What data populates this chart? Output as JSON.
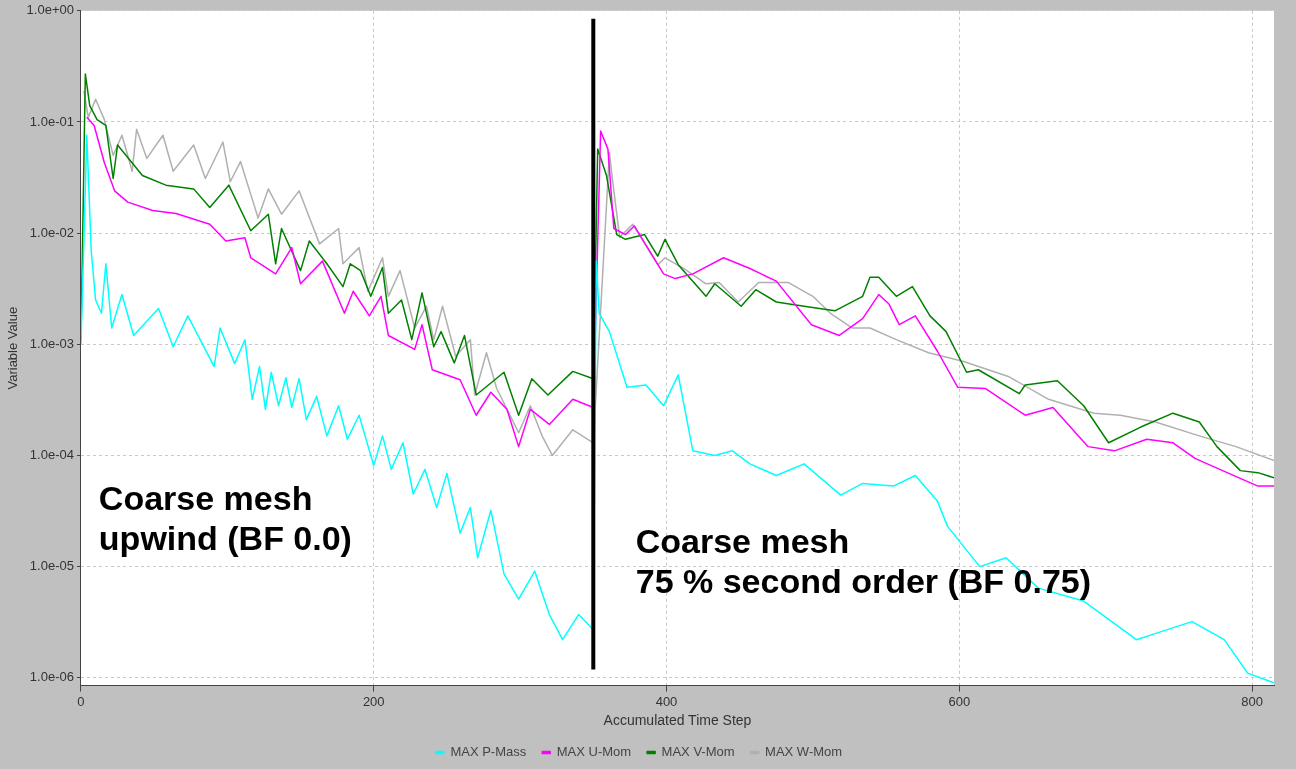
{
  "chart_data": {
    "type": "line",
    "xlabel": "Accumulated Time Step",
    "ylabel": "Variable Value",
    "log": "y",
    "grid": true,
    "legend": "bottom",
    "marker": "none",
    "line_style": "solid",
    "xlim": [
      0,
      815
    ],
    "xticks": [
      0,
      200,
      400,
      600,
      800
    ],
    "ylim": [
      8.5e-07,
      1
    ],
    "yticks": [
      {
        "value": 1e-06,
        "label": "1.0e-06"
      },
      {
        "value": 1e-05,
        "label": "1.0e-05"
      },
      {
        "value": 0.0001,
        "label": "1.0e-04"
      },
      {
        "value": 0.001,
        "label": "1.0e-03"
      },
      {
        "value": 0.01,
        "label": "1.0e-02"
      },
      {
        "value": 0.1,
        "label": "1.0e-01"
      },
      {
        "value": 1,
        "label": "1.0e+00"
      }
    ],
    "ref_lines": [
      {
        "axis": "x",
        "value": 350,
        "color": "#000000"
      }
    ],
    "annotations": [
      "Coarse mesh\nupwind (BF 0.0)",
      "Coarse mesh\n75 % second order (BF 0.75)"
    ],
    "series": [
      {
        "name": "MAX P-Mass",
        "color": "#00ffff",
        "x": [
          0,
          4,
          7,
          10,
          14,
          17,
          21,
          28,
          36,
          53,
          63,
          73,
          91,
          95,
          105,
          112,
          117,
          122,
          126,
          130,
          135,
          140,
          144,
          149,
          154,
          161,
          168,
          176,
          182,
          190,
          200,
          206,
          212,
          220,
          227,
          235,
          243,
          250,
          259,
          266,
          271,
          280,
          289,
          299,
          310,
          320,
          329,
          340,
          350,
          352,
          354,
          361,
          373,
          386,
          398,
          408,
          418,
          433,
          445,
          457,
          475,
          494,
          519,
          534,
          555,
          570,
          585,
          592,
          614,
          632,
          654,
          685,
          721,
          738,
          759,
          781,
          797,
          815
        ],
        "values": [
          0.001,
          0.076,
          0.007,
          0.0025,
          0.0019,
          0.0053,
          0.0014,
          0.0028,
          0.0012,
          0.0021,
          0.00095,
          0.0018,
          0.00063,
          0.0014,
          0.00067,
          0.0011,
          0.00032,
          0.00063,
          0.00026,
          0.00056,
          0.00028,
          0.0005,
          0.00027,
          0.00049,
          0.00021,
          0.00034,
          0.00015,
          0.00028,
          0.00014,
          0.00023,
          8.1e-05,
          0.00015,
          7.5e-05,
          0.00013,
          4.5e-05,
          7.5e-05,
          3.4e-05,
          6.9e-05,
          2e-05,
          3.4e-05,
          1.2e-05,
          3.2e-05,
          8.6e-06,
          5.1e-06,
          9.1e-06,
          3.7e-06,
          2.2e-06,
          3.7e-06,
          2.7e-06,
          0.0056,
          0.0019,
          0.0013,
          0.00041,
          0.00043,
          0.00028,
          0.00053,
          0.00011,
          0.0001,
          0.00011,
          8.4e-05,
          6.6e-05,
          8.4e-05,
          4.4e-05,
          5.6e-05,
          5.3e-05,
          6.6e-05,
          3.9e-05,
          2.3e-05,
          1e-05,
          1.2e-05,
          6.4e-06,
          4.9e-06,
          2.2e-06,
          2.6e-06,
          3.2e-06,
          2.2e-06,
          1.1e-06,
          9e-07
        ]
      },
      {
        "name": "MAX U-Mom",
        "color": "#ff00ff",
        "x": [
          4,
          9,
          16,
          23,
          32,
          49,
          65,
          88,
          99,
          112,
          116,
          133,
          144,
          150,
          165,
          180,
          186,
          197,
          205,
          210,
          228,
          233,
          240,
          259,
          270,
          280,
          291,
          299,
          307,
          320,
          336,
          350,
          355,
          360,
          364,
          372,
          378,
          398,
          406,
          418,
          439,
          457,
          475,
          499,
          518,
          534,
          545,
          552,
          559,
          570,
          585,
          599,
          618,
          645,
          664,
          688,
          706,
          728,
          746,
          761,
          783,
          804,
          815
        ],
        "values": [
          0.11,
          0.093,
          0.043,
          0.024,
          0.019,
          0.016,
          0.015,
          0.012,
          0.0085,
          0.0091,
          0.006,
          0.0043,
          0.0074,
          0.0035,
          0.0056,
          0.0019,
          0.003,
          0.0018,
          0.0027,
          0.0012,
          0.0009,
          0.0015,
          0.00059,
          0.00048,
          0.00023,
          0.00037,
          0.00026,
          0.00012,
          0.00026,
          0.00019,
          0.00032,
          0.00027,
          0.083,
          0.057,
          0.011,
          0.0097,
          0.0116,
          0.0043,
          0.0039,
          0.0043,
          0.006,
          0.0048,
          0.0037,
          0.0015,
          0.0012,
          0.0017,
          0.0028,
          0.0023,
          0.0015,
          0.0018,
          0.00087,
          0.00041,
          0.0004,
          0.00023,
          0.00027,
          0.00012,
          0.00011,
          0.00014,
          0.00013,
          9.4e-05,
          7e-05,
          5.3e-05,
          5.3e-05
        ]
      },
      {
        "name": "MAX V-Mom",
        "color": "#008000",
        "x": [
          0,
          3,
          6,
          11,
          17,
          22,
          25,
          42,
          58,
          77,
          88,
          101,
          116,
          128,
          133,
          137,
          150,
          156,
          168,
          179,
          184,
          191,
          198,
          206,
          210,
          219,
          226,
          233,
          241,
          246,
          255,
          262,
          270,
          289,
          299,
          308,
          319,
          336,
          350,
          353,
          359,
          366,
          372,
          385,
          394,
          399,
          408,
          427,
          433,
          451,
          461,
          475,
          494,
          515,
          534,
          539,
          545,
          557,
          568,
          580,
          591,
          605,
          613,
          641,
          645,
          667,
          685,
          702,
          724,
          746,
          764,
          776,
          792,
          804,
          815
        ],
        "values": [
          0.0011,
          0.27,
          0.14,
          0.105,
          0.093,
          0.031,
          0.062,
          0.033,
          0.027,
          0.025,
          0.017,
          0.027,
          0.0105,
          0.0148,
          0.0053,
          0.011,
          0.0046,
          0.0085,
          0.0053,
          0.0033,
          0.0053,
          0.0046,
          0.0027,
          0.0049,
          0.0019,
          0.0025,
          0.0011,
          0.0029,
          0.00095,
          0.0013,
          0.00068,
          0.0012,
          0.00035,
          0.00056,
          0.00023,
          0.00049,
          0.00035,
          0.00057,
          0.00049,
          0.057,
          0.033,
          0.0097,
          0.0088,
          0.0097,
          0.0062,
          0.0088,
          0.0052,
          0.0027,
          0.0035,
          0.0022,
          0.0031,
          0.0024,
          0.0022,
          0.002,
          0.0027,
          0.004,
          0.004,
          0.0027,
          0.0033,
          0.0018,
          0.0013,
          0.00056,
          0.00059,
          0.00036,
          0.00043,
          0.00047,
          0.00028,
          0.00013,
          0.00018,
          0.00024,
          0.0002,
          0.00012,
          7.3e-05,
          7e-05,
          6.3e-05
        ]
      },
      {
        "name": "MAX W-Mom",
        "color": "#b0b0b0",
        "x": [
          2,
          5,
          10,
          16,
          22,
          28,
          35,
          38,
          45,
          56,
          63,
          77,
          85,
          97,
          102,
          109,
          121,
          128,
          137,
          149,
          163,
          176,
          179,
          190,
          196,
          206,
          210,
          218,
          228,
          236,
          241,
          247,
          256,
          266,
          269,
          277,
          284,
          299,
          307,
          315,
          322,
          336,
          350,
          361,
          363,
          368,
          377,
          394,
          399,
          412,
          427,
          436,
          449,
          463,
          483,
          500,
          512,
          527,
          539,
          557,
          579,
          603,
          634,
          661,
          692,
          710,
          734,
          764,
          789,
          815
        ],
        "values": [
          0.19,
          0.11,
          0.16,
          0.105,
          0.05,
          0.076,
          0.036,
          0.086,
          0.047,
          0.076,
          0.036,
          0.062,
          0.031,
          0.066,
          0.029,
          0.044,
          0.0137,
          0.025,
          0.0148,
          0.024,
          0.008,
          0.011,
          0.0053,
          0.0074,
          0.003,
          0.006,
          0.0027,
          0.0046,
          0.0014,
          0.0022,
          0.0011,
          0.0022,
          0.00078,
          0.0011,
          0.00035,
          0.00084,
          0.0004,
          0.00016,
          0.00028,
          0.00015,
          0.0001,
          0.00017,
          0.00013,
          0.053,
          0.031,
          0.0092,
          0.012,
          0.0052,
          0.006,
          0.0048,
          0.0035,
          0.0036,
          0.0024,
          0.0036,
          0.0036,
          0.0027,
          0.0019,
          0.0014,
          0.0014,
          0.0011,
          0.00084,
          0.0007,
          0.00051,
          0.00032,
          0.00024,
          0.00023,
          0.0002,
          0.00015,
          0.00012,
          9e-05
        ]
      }
    ]
  }
}
